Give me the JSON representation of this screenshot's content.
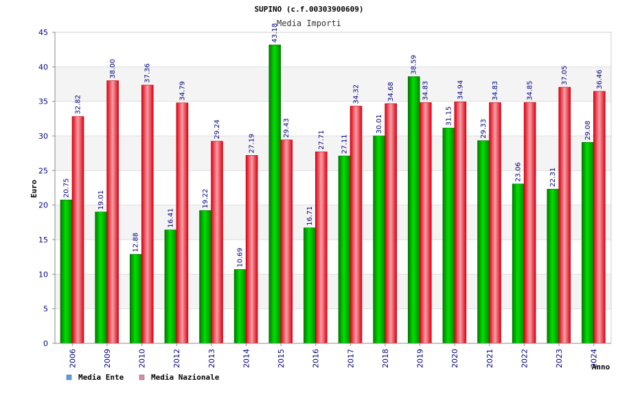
{
  "chart_data": {
    "type": "bar",
    "title": "SUPINO (c.f.00303900609)",
    "subtitle": "Media Importi",
    "ylabel": "Euro",
    "xlabel": "Anno",
    "ylim": [
      0,
      45
    ],
    "yticks": [
      0,
      5,
      10,
      15,
      20,
      25,
      30,
      35,
      40,
      45
    ],
    "categories": [
      "2006",
      "2009",
      "2010",
      "2012",
      "2013",
      "2014",
      "2015",
      "2016",
      "2017",
      "2018",
      "2019",
      "2020",
      "2021",
      "2022",
      "2023",
      "2024"
    ],
    "series": [
      {
        "name": "Media Ente",
        "legend_color": "#5B9BE8",
        "bar_color": "#00B000",
        "values": [
          20.75,
          19.01,
          12.88,
          16.41,
          19.22,
          10.69,
          43.18,
          16.71,
          27.11,
          30.01,
          38.59,
          31.15,
          29.33,
          23.06,
          22.31,
          29.08
        ],
        "labels": [
          "20.75",
          "19.01",
          "12.88",
          "16.41",
          "19.22",
          "10.69",
          "43.18",
          "16.71",
          "27.11",
          "30.01",
          "38.59",
          "31.15",
          "29.33",
          "23.06",
          "22.31",
          "29.08"
        ]
      },
      {
        "name": "Media Nazionale",
        "legend_color": "#D98BB0",
        "bar_color": "#E8202C",
        "values": [
          32.82,
          38.0,
          37.36,
          34.79,
          29.24,
          27.19,
          29.43,
          27.71,
          34.32,
          34.68,
          34.83,
          34.94,
          34.83,
          34.85,
          37.05,
          36.46
        ],
        "labels": [
          "32.82",
          "38.00",
          "37.36",
          "34.79",
          "29.24",
          "27.19",
          "29.43",
          "27.71",
          "34.32",
          "34.68",
          "34.83",
          "34.94",
          "34.83",
          "34.85",
          "37.05",
          "36.46"
        ]
      }
    ],
    "grid": true,
    "legend_position": "bottom-left"
  }
}
